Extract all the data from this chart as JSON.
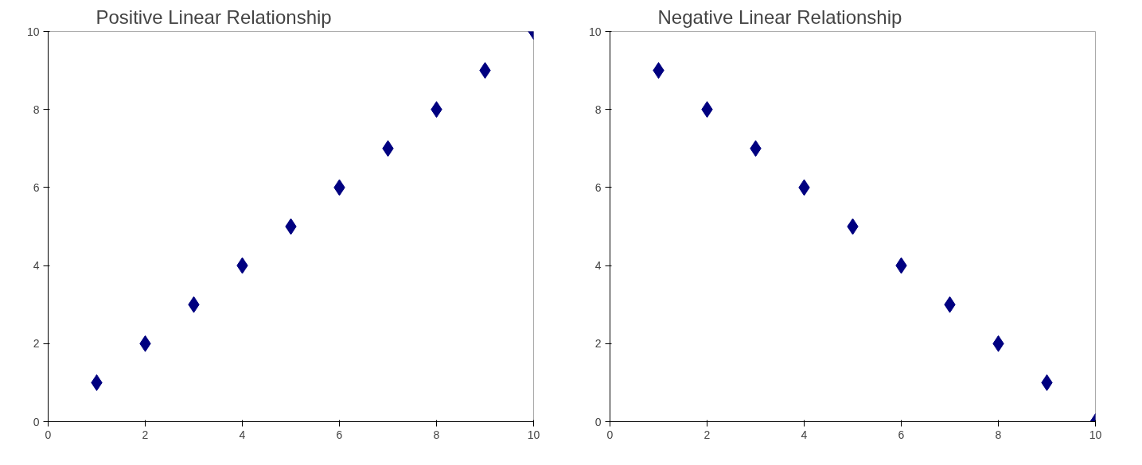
{
  "chart_data": [
    {
      "type": "scatter",
      "title": "Positive Linear Relationship",
      "x": [
        1,
        2,
        3,
        4,
        5,
        6,
        7,
        8,
        9,
        10
      ],
      "values": [
        1,
        2,
        3,
        4,
        5,
        6,
        7,
        8,
        9,
        10
      ],
      "color": "#000080",
      "marker": "diamond",
      "xlim": [
        0,
        10
      ],
      "ylim": [
        0,
        10
      ],
      "xticks": [
        0,
        2,
        4,
        6,
        8,
        10
      ],
      "yticks": [
        0,
        2,
        4,
        6,
        8,
        10
      ],
      "grid": false
    },
    {
      "type": "scatter",
      "title": "Negative Linear Relationship",
      "x": [
        1,
        2,
        3,
        4,
        5,
        6,
        7,
        8,
        9,
        10
      ],
      "values": [
        9,
        8,
        7,
        6,
        5,
        4,
        3,
        2,
        1,
        0
      ],
      "color": "#000080",
      "marker": "diamond",
      "xlim": [
        0,
        10
      ],
      "ylim": [
        0,
        10
      ],
      "xticks": [
        0,
        2,
        4,
        6,
        8,
        10
      ],
      "yticks": [
        0,
        2,
        4,
        6,
        8,
        10
      ],
      "grid": false
    }
  ]
}
